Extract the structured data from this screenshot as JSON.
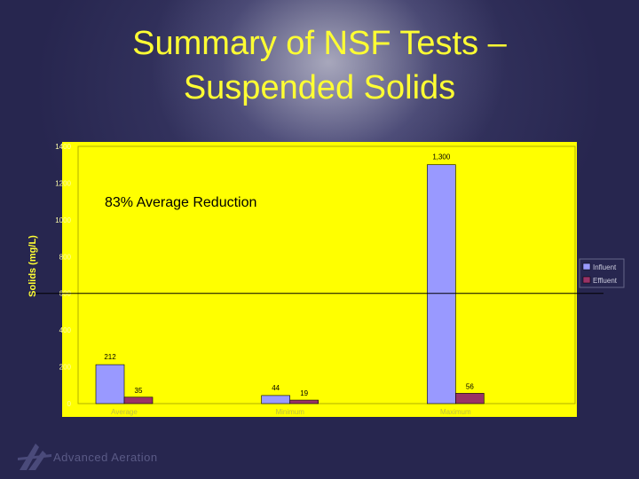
{
  "slide": {
    "title_line1": "Summary of NSF Tests –",
    "title_line2": "Suspended Solids",
    "logo_text": "Advanced Aeration"
  },
  "colors": {
    "background": "#27264f",
    "title": "#ffff33",
    "plot_area": "#ffff00",
    "influent": "#9999ff",
    "effluent": "#993366"
  },
  "chart_data": {
    "type": "bar",
    "categories": [
      "Average",
      "Minimum",
      "Maximum"
    ],
    "series": [
      {
        "name": "Influent",
        "values": [
          212,
          44,
          1300
        ],
        "labels": [
          "212",
          "44",
          "1,300"
        ]
      },
      {
        "name": "Effluent",
        "values": [
          35,
          19,
          56
        ],
        "labels": [
          "35",
          "19",
          "56"
        ]
      }
    ],
    "ylabel": "Solids (mg/L)",
    "ylim": [
      0,
      1400
    ],
    "yticks": [
      0,
      200,
      400,
      600,
      800,
      1000,
      1200,
      1400
    ],
    "reference_line": 600,
    "annotation": "83% Average Reduction",
    "legend_position": "right"
  }
}
